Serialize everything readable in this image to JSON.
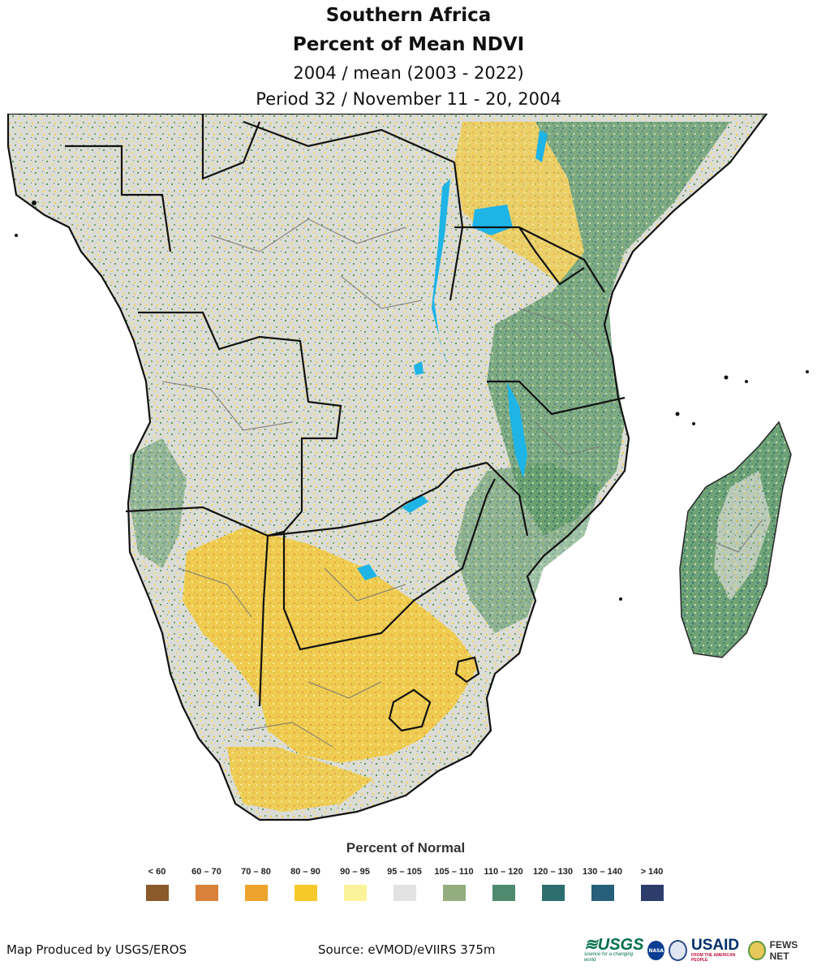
{
  "title": {
    "line1": "Southern Africa",
    "line2": "Percent of Mean NDVI",
    "line3": "2004 / mean (2003 - 2022)",
    "line4": "Period 32 / November 11 - 20, 2004"
  },
  "legend": {
    "title": "Percent of Normal",
    "items": [
      {
        "label": "< 60",
        "color": "#8a5a2b"
      },
      {
        "label": "60 – 70",
        "color": "#d9813a"
      },
      {
        "label": "70 – 80",
        "color": "#eea42c"
      },
      {
        "label": "80 – 90",
        "color": "#f6c92a"
      },
      {
        "label": "90 – 95",
        "color": "#fbf39a"
      },
      {
        "label": "95 – 105",
        "color": "#e3e3e3"
      },
      {
        "label": "105 – 110",
        "color": "#93ad7e"
      },
      {
        "label": "110 – 120",
        "color": "#4f8a6e"
      },
      {
        "label": "120 – 130",
        "color": "#2c6e6e"
      },
      {
        "label": "130 – 140",
        "color": "#265f7a"
      },
      {
        "label": "> 140",
        "color": "#2c3d6c"
      }
    ]
  },
  "footer": {
    "produced_by": "Map Produced by USGS/EROS",
    "source": "Source: eVMOD/eVIIRS 375m"
  },
  "logos": {
    "usgs": "≋USGS",
    "usgs_tagline": "science for a changing world",
    "nasa": "NASA",
    "usaid": "USAID",
    "usaid_tagline": "FROM THE AMERICAN PEOPLE",
    "fews": "FEWS NET"
  },
  "map_colors": {
    "water": "#1eb4e6",
    "border": "#111111",
    "admin": "#666666",
    "normal": "#e3e3e3"
  }
}
